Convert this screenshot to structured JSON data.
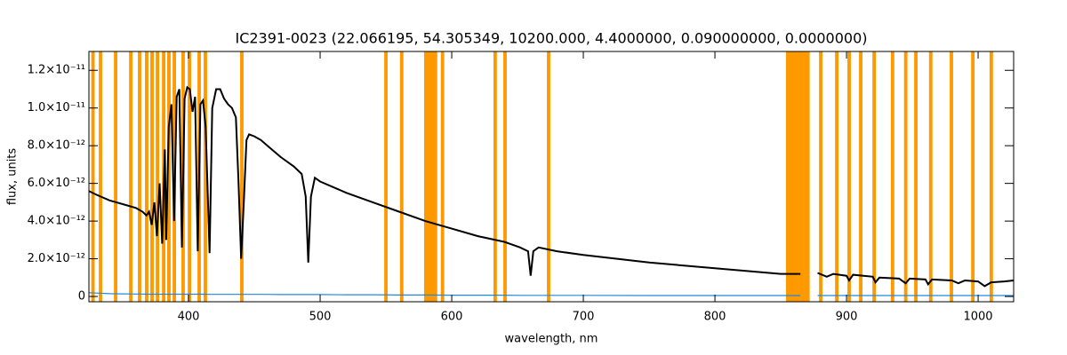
{
  "chart_data": {
    "type": "line",
    "title": "IC2391-0023   (22.066195, 54.305349, 10200.000, 4.4000000, 0.090000000, 0.0000000)",
    "x_label": "wavelength, nm",
    "y_label": "flux, units",
    "xlim": [
      324.3,
      1027
    ],
    "xticks": [
      400,
      500,
      600,
      700,
      800,
      900,
      1000
    ],
    "ylim": [
      -2.8e-13,
      1.3e-11
    ],
    "yticks": [
      {
        "value": 0,
        "label": "0"
      },
      {
        "value": 2e-12,
        "label": "2.0×10⁻¹²"
      },
      {
        "value": 4e-12,
        "label": "4.0×10⁻¹²"
      },
      {
        "value": 6e-12,
        "label": "6.0×10⁻¹²"
      },
      {
        "value": 8e-12,
        "label": "8.0×10⁻¹²"
      },
      {
        "value": 1e-11,
        "label": "1.0×10⁻¹¹"
      },
      {
        "value": 1.2e-11,
        "label": "1.2×10⁻¹¹"
      }
    ],
    "mask_color": "#ff9900",
    "masks": [
      [
        326.1,
        328.7
      ],
      [
        331.8,
        334.4
      ],
      [
        343.3,
        345.9
      ],
      [
        354.8,
        357.4
      ],
      [
        361.5,
        364.1
      ],
      [
        366.9,
        369.5
      ],
      [
        371,
        373.6
      ],
      [
        375.1,
        377.7
      ],
      [
        379.8,
        382.4
      ],
      [
        383.8,
        386.4
      ],
      [
        387.9,
        390.5
      ],
      [
        394.6,
        397.2
      ],
      [
        399.4,
        402
      ],
      [
        406.8,
        409.4
      ],
      [
        411.5,
        414.1
      ],
      [
        439.2,
        441.8
      ],
      [
        548.7,
        551.3
      ],
      [
        560.7,
        563.3
      ],
      [
        579,
        589
      ],
      [
        591.7,
        594.3
      ],
      [
        631.7,
        634.3
      ],
      [
        639.2,
        641.8
      ],
      [
        672.3,
        674.9
      ],
      [
        854,
        872
      ],
      [
        879.1,
        881.7
      ],
      [
        891.3,
        893.9
      ],
      [
        900.7,
        903.3
      ],
      [
        909.5,
        912.1
      ],
      [
        919.7,
        922.3
      ],
      [
        933.7,
        936.3
      ],
      [
        943.7,
        946.3
      ],
      [
        951.4,
        954
      ],
      [
        962.7,
        965.3
      ],
      [
        978.4,
        981
      ],
      [
        994.7,
        997.3
      ],
      [
        1008.7,
        1011.3
      ]
    ],
    "x": [
      324,
      330,
      340,
      350,
      360,
      365,
      368,
      370,
      372,
      374,
      376,
      378,
      380,
      382,
      383,
      385,
      387,
      389,
      391,
      393,
      395,
      397,
      399,
      401,
      403,
      405,
      407,
      409,
      411,
      413,
      416,
      418,
      421,
      424,
      427,
      430,
      433,
      436,
      438,
      440,
      442,
      444,
      446,
      450,
      455,
      460,
      470,
      480,
      486,
      489,
      491,
      493,
      496,
      500,
      520,
      540,
      560,
      580,
      600,
      620,
      640,
      652,
      658,
      660,
      662,
      666,
      680,
      700,
      750,
      800,
      850,
      865,
      870,
      878,
      885,
      890,
      900,
      902,
      905,
      920,
      922,
      925,
      940,
      945,
      948,
      960,
      962,
      965,
      980,
      985,
      990,
      1000,
      1005,
      1010,
      1020,
      1027
    ],
    "series": [
      {
        "color": "#000000",
        "values": [
          5.6e-12,
          5.4e-12,
          5.1e-12,
          4.9e-12,
          4.7e-12,
          4.5e-12,
          4.3e-12,
          4.5e-12,
          3.8e-12,
          5e-12,
          3.2e-12,
          6e-12,
          2.8e-12,
          7.8e-12,
          3e-12,
          9e-12,
          1.02e-11,
          4e-12,
          1.06e-11,
          1.1e-11,
          2.6e-12,
          1.05e-11,
          1.11e-11,
          1.1e-11,
          9.8e-12,
          1.06e-11,
          2.4e-12,
          1.02e-11,
          1.04e-11,
          9e-12,
          2.3e-12,
          1e-11,
          1.1e-11,
          1.1e-11,
          1.05e-11,
          1.02e-11,
          1e-11,
          9.5e-12,
          6e-12,
          2e-12,
          5e-12,
          8.3e-12,
          8.6e-12,
          8.5e-12,
          8.3e-12,
          8e-12,
          7.4e-12,
          6.9e-12,
          6.5e-12,
          5.3e-12,
          1.8e-12,
          5.3e-12,
          6.3e-12,
          6.1e-12,
          5.5e-12,
          5e-12,
          4.5e-12,
          4e-12,
          3.6e-12,
          3.2e-12,
          2.9e-12,
          2.6e-12,
          2.4e-12,
          1.1e-12,
          2.4e-12,
          2.6e-12,
          2.4e-12,
          2.2e-12,
          1.8e-12,
          1.5e-12,
          1.2e-12,
          1.2e-12,
          null,
          1.25e-12,
          1.05e-12,
          1.2e-12,
          1.1e-12,
          8.5e-13,
          1.15e-12,
          1.05e-12,
          7.5e-13,
          1e-12,
          9.5e-13,
          7e-13,
          9.5e-13,
          9e-13,
          6.5e-13,
          9e-13,
          8.5e-13,
          7e-13,
          8.5e-13,
          8e-13,
          5.5e-13,
          7.5e-13,
          8e-13,
          8.5e-13
        ]
      },
      {
        "color": "#2288dd",
        "values": [
          2e-13,
          1.8e-13,
          1.5e-13,
          1.4e-13,
          1.3e-13,
          1.3e-13,
          1.2e-13,
          1.2e-13,
          1.2e-13,
          1.2e-13,
          1.2e-13,
          1.2e-13,
          1.2e-13,
          1.2e-13,
          1.2e-13,
          1.2e-13,
          1.2e-13,
          1.2e-13,
          1.2e-13,
          1.2e-13,
          1.2e-13,
          1.2e-13,
          1.2e-13,
          1.2e-13,
          1.2e-13,
          1.2e-13,
          1.2e-13,
          1.2e-13,
          1.2e-13,
          1.2e-13,
          1.1e-13,
          1.1e-13,
          1.1e-13,
          1.1e-13,
          1.1e-13,
          1.1e-13,
          1.1e-13,
          1.1e-13,
          1.1e-13,
          1.1e-13,
          1.1e-13,
          1.1e-13,
          1.1e-13,
          1.1e-13,
          1.1e-13,
          1.1e-13,
          1e-13,
          1e-13,
          1e-13,
          1e-13,
          1e-13,
          1e-13,
          1e-13,
          1e-13,
          9e-14,
          9e-14,
          8e-14,
          8e-14,
          7e-14,
          7e-14,
          7e-14,
          6e-14,
          6e-14,
          6e-14,
          6e-14,
          6e-14,
          6e-14,
          6e-14,
          5e-14,
          5e-14,
          5e-14,
          5e-14,
          null,
          5e-14,
          5e-14,
          5e-14,
          5e-14,
          5e-14,
          5e-14,
          5e-14,
          5e-14,
          5e-14,
          5e-14,
          5e-14,
          5e-14,
          5e-14,
          5e-14,
          5e-14,
          5e-14,
          5e-14,
          5e-14,
          5e-14,
          5e-14,
          5e-14,
          5e-14,
          5e-14
        ]
      }
    ]
  }
}
